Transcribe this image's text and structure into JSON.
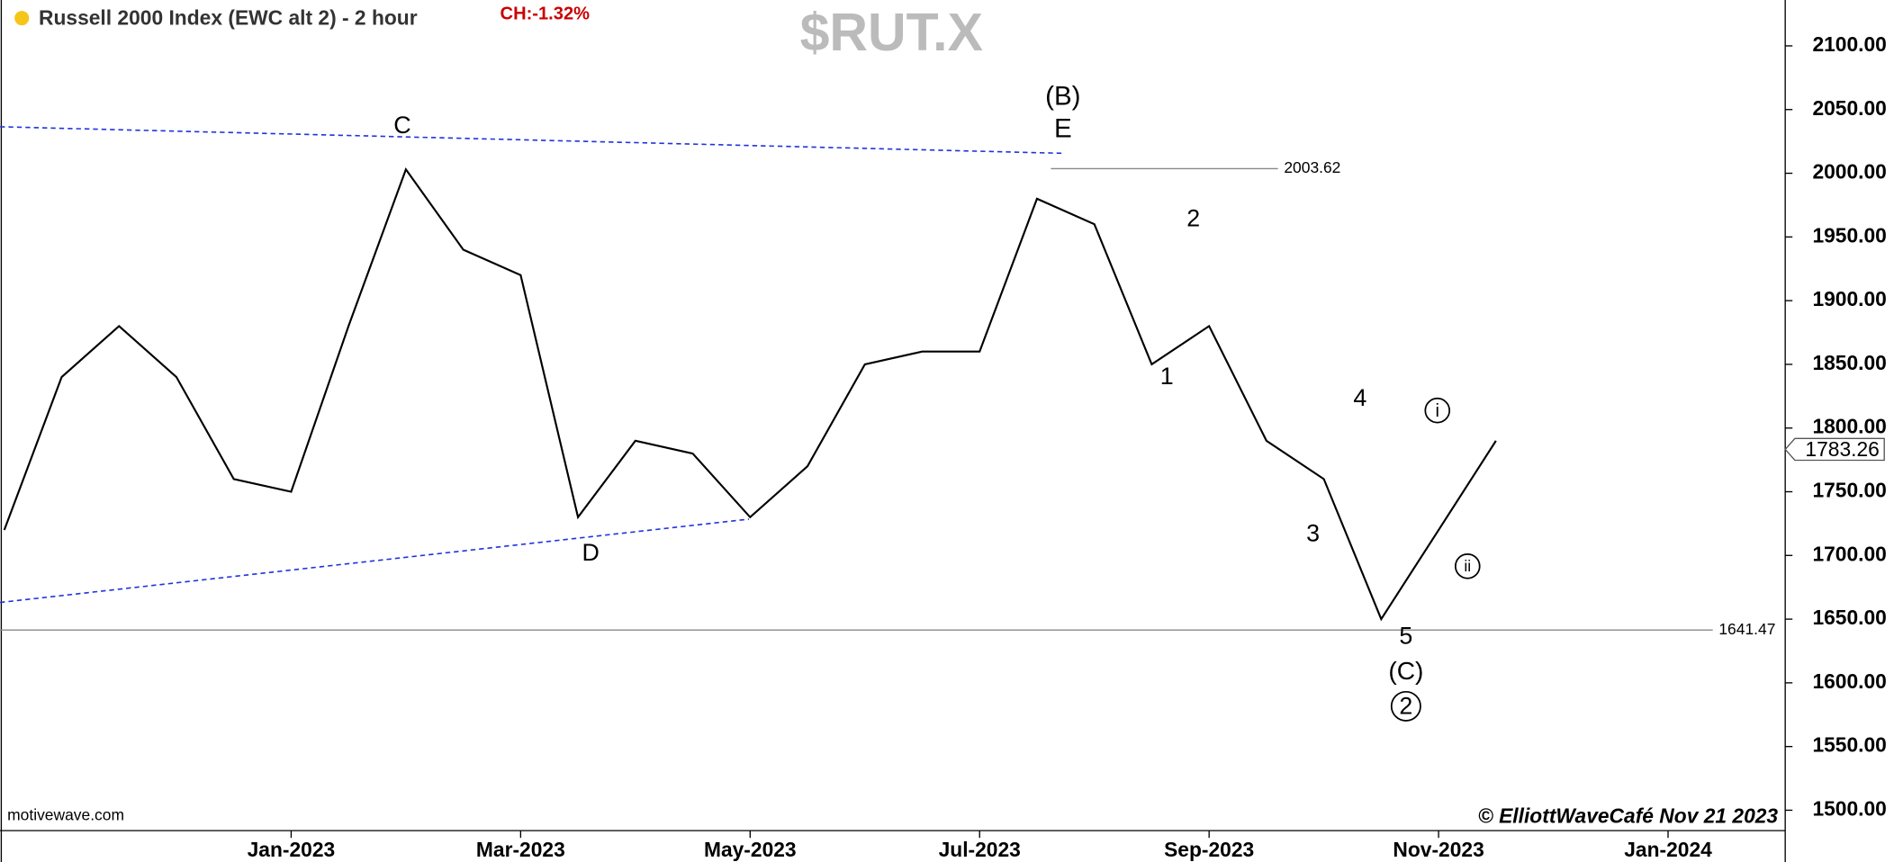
{
  "chart_data": {
    "type": "line",
    "title": "Russell 2000 Index (EWC alt 2) - 2 hour",
    "change_label": "CH:-1.32%",
    "symbol": "$RUT.X",
    "source": "motivewave.com",
    "copyright": "© ElliottWaveCafé Nov 21 2023",
    "categories": [
      null,
      null,
      null,
      null,
      null,
      "Jan-2023",
      null,
      null,
      null,
      "Mar-2023",
      null,
      null,
      null,
      "May-2023",
      null,
      null,
      null,
      "Jul-2023",
      null,
      null,
      null,
      "Sep-2023",
      null,
      null,
      null,
      "Nov-2023",
      null,
      null,
      null,
      "Jan-2024",
      null,
      null
    ],
    "series": [
      {
        "name": "$RUT.X",
        "color": "#000000",
        "values": [
          1720,
          1840,
          1880,
          1840,
          1760,
          1750,
          1880,
          2003,
          1940,
          1920,
          1730,
          1790,
          1780,
          1730,
          1770,
          1850,
          1860,
          1860,
          1980,
          1960,
          1850,
          1880,
          1790,
          1760,
          1650,
          1720,
          1790,
          null,
          null,
          null,
          null,
          null
        ]
      }
    ],
    "levels": [
      2003.62,
      1641.47
    ],
    "last_price": 1783.26,
    "annotations": [
      "(B)",
      "E",
      "C",
      "D",
      "2",
      "1",
      "3",
      "4",
      "5",
      "(C)",
      "2",
      "i",
      "ii"
    ],
    "ylim": [
      1484,
      2136
    ],
    "yticks": [
      {
        "value": 1500,
        "label": "1500.00"
      },
      {
        "value": 1550,
        "label": "1550.00"
      },
      {
        "value": 1600,
        "label": "1600.00"
      },
      {
        "value": 1650,
        "label": "1650.00"
      },
      {
        "value": 1700,
        "label": "1700.00"
      },
      {
        "value": 1750,
        "label": "1750.00"
      },
      {
        "value": 1800,
        "label": "1800.00"
      },
      {
        "value": 1850,
        "label": "1850.00"
      },
      {
        "value": 1900,
        "label": "1900.00"
      },
      {
        "value": 1950,
        "label": "1950.00"
      },
      {
        "value": 2000,
        "label": "2000.00"
      },
      {
        "value": 2050,
        "label": "2050.00"
      },
      {
        "value": 2100,
        "label": "2100.00"
      }
    ]
  }
}
